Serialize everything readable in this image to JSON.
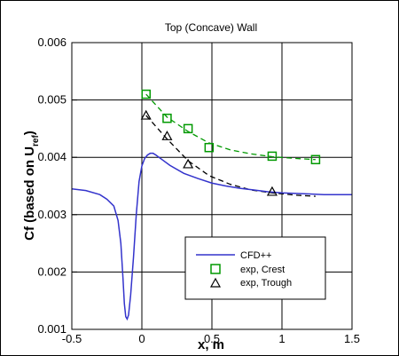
{
  "chart_data": {
    "type": "line",
    "title": "Top (Concave) Wall",
    "xlabel": "x, m",
    "ylabel": {
      "main": "Cf (based on U",
      "subscript": "ref",
      "close": ")"
    },
    "xlim": [
      -0.5,
      1.5
    ],
    "ylim": [
      0.001,
      0.006
    ],
    "x_ticks": [
      -0.5,
      0,
      0.5,
      1,
      1.5
    ],
    "x_tick_labels": [
      "-0.5",
      "0",
      "0.5",
      "1",
      "1.5"
    ],
    "y_ticks": [
      0.001,
      0.002,
      0.003,
      0.004,
      0.005,
      0.006
    ],
    "y_tick_labels": [
      "0.001",
      "0.002",
      "0.003",
      "0.004",
      "0.005",
      "0.006"
    ],
    "grid": true,
    "legend_position": "lower-right",
    "series": [
      {
        "name": "CFD++",
        "kind": "line",
        "color": "#3333cc",
        "x": [
          -0.5,
          -0.4,
          -0.3,
          -0.25,
          -0.2,
          -0.17,
          -0.15,
          -0.135,
          -0.125,
          -0.115,
          -0.105,
          -0.095,
          -0.08,
          -0.06,
          -0.04,
          -0.02,
          0.0,
          0.02,
          0.04,
          0.06,
          0.08,
          0.1,
          0.15,
          0.2,
          0.3,
          0.4,
          0.5,
          0.6,
          0.7,
          0.8,
          0.9,
          1.0,
          1.1,
          1.2,
          1.3,
          1.4,
          1.5
        ],
        "y": [
          0.00345,
          0.00342,
          0.00335,
          0.00327,
          0.00315,
          0.0029,
          0.0025,
          0.0019,
          0.00145,
          0.00122,
          0.00118,
          0.00125,
          0.0016,
          0.00225,
          0.003,
          0.00358,
          0.00385,
          0.00398,
          0.00404,
          0.00407,
          0.00407,
          0.00404,
          0.00395,
          0.00386,
          0.00372,
          0.00363,
          0.00355,
          0.0035,
          0.00346,
          0.00343,
          0.0034,
          0.00338,
          0.00337,
          0.00336,
          0.00335,
          0.00335,
          0.00335
        ]
      },
      {
        "name": "exp, Crest",
        "kind": "markers",
        "marker": "square",
        "color": "#009900",
        "x": [
          0.03,
          0.18,
          0.33,
          0.48,
          0.93,
          1.24
        ],
        "y": [
          0.0051,
          0.00468,
          0.0045,
          0.00417,
          0.00402,
          0.00396
        ]
      },
      {
        "name": "exp, Trough",
        "kind": "markers",
        "marker": "triangle",
        "color": "#000000",
        "x": [
          0.03,
          0.18,
          0.33,
          0.93
        ],
        "y": [
          0.00473,
          0.00437,
          0.00388,
          0.0034
        ]
      },
      {
        "name": "",
        "kind": "dashed-fit",
        "color": "#009900",
        "x": [
          0.03,
          0.18,
          0.33,
          0.48,
          0.63,
          0.78,
          0.93,
          1.1,
          1.24
        ],
        "y": [
          0.0051,
          0.0047,
          0.00445,
          0.00425,
          0.00413,
          0.00406,
          0.00401,
          0.00398,
          0.00396
        ]
      },
      {
        "name": "",
        "kind": "dashed-fit",
        "color": "#000000",
        "x": [
          0.03,
          0.18,
          0.33,
          0.48,
          0.63,
          0.78,
          0.93,
          1.1,
          1.24
        ],
        "y": [
          0.00473,
          0.00432,
          0.00394,
          0.00368,
          0.00353,
          0.00343,
          0.00338,
          0.00334,
          0.00332
        ]
      }
    ]
  }
}
